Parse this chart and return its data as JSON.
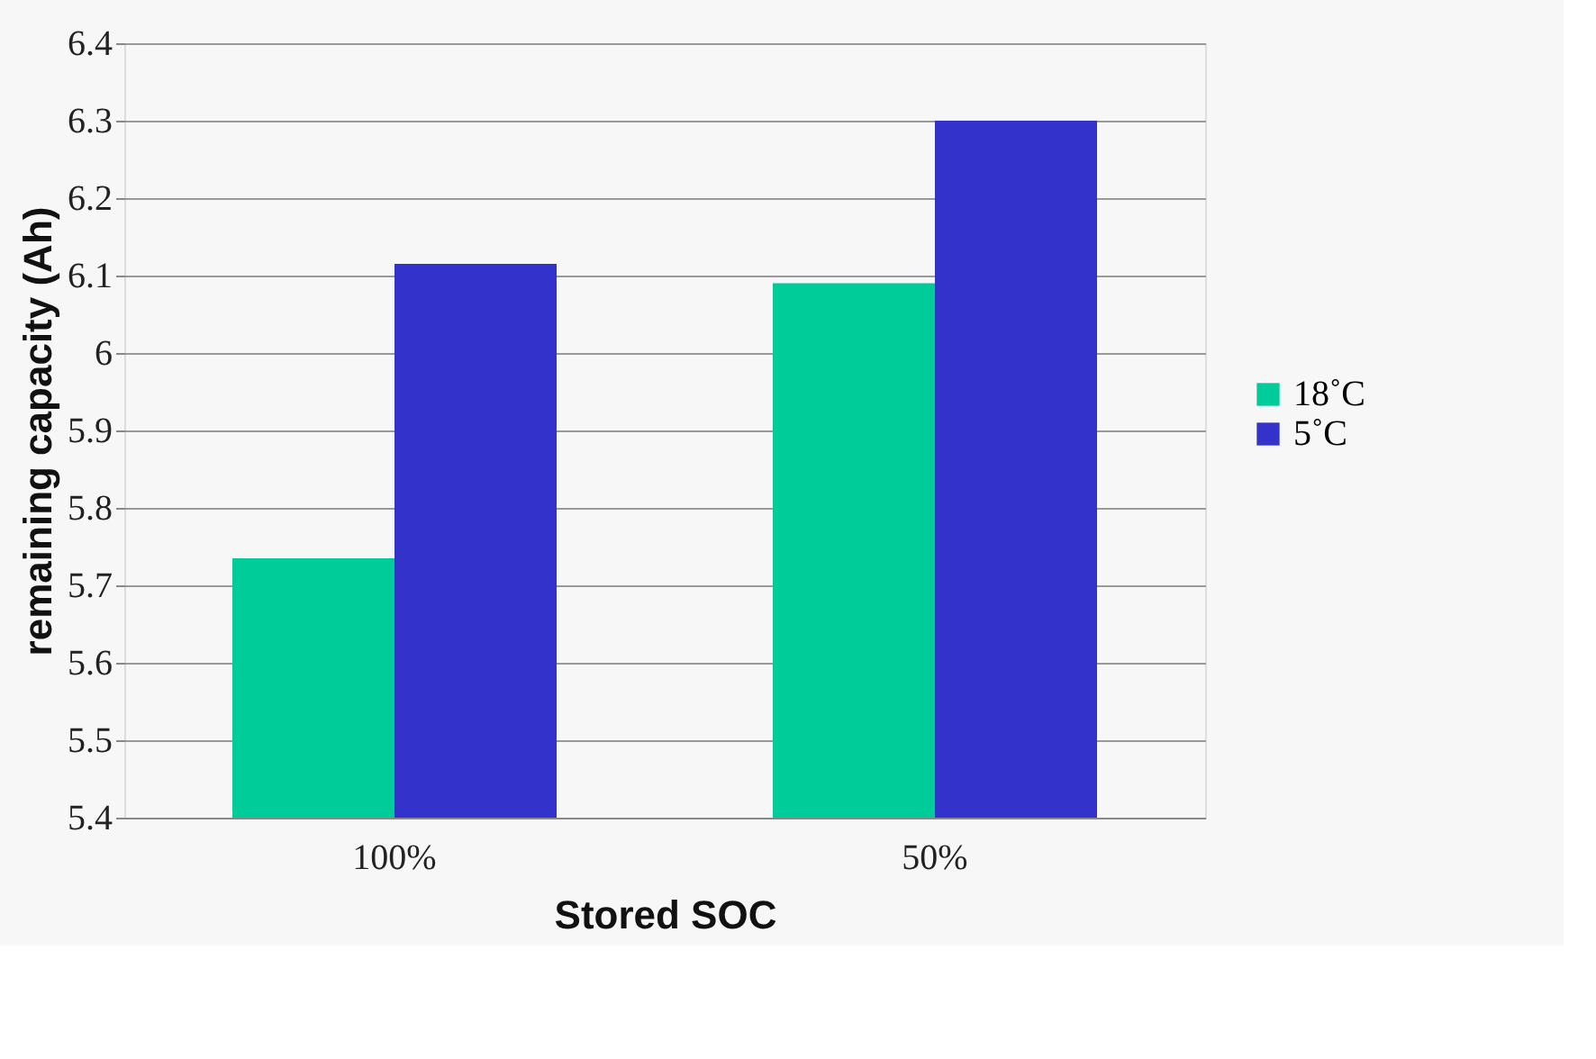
{
  "chart_data": {
    "type": "bar",
    "xlabel": "Stored SOC",
    "ylabel": "remaining capacity (Ah)",
    "categories": [
      "100%",
      "50%"
    ],
    "series": [
      {
        "name": "18˚C",
        "color": "#00cc99",
        "values": [
          5.735,
          6.09
        ]
      },
      {
        "name": "5˚C",
        "color": "#3333cc",
        "values": [
          6.115,
          6.3
        ]
      }
    ],
    "ylim": [
      5.4,
      6.4
    ],
    "yticks": [
      5.4,
      5.5,
      5.6,
      5.7,
      5.8,
      5.9,
      6,
      6.1,
      6.2,
      6.3,
      6.4
    ],
    "grid": "y",
    "legend": "right"
  }
}
